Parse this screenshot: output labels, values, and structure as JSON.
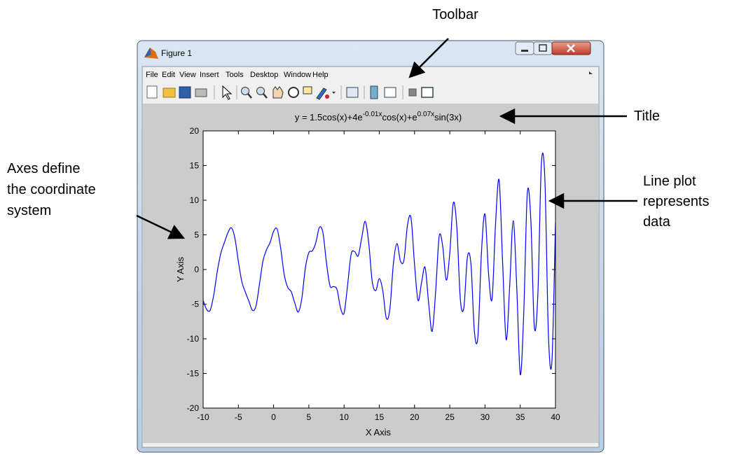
{
  "window": {
    "title": "Figure 1",
    "menu": [
      "File",
      "Edit",
      "View",
      "Insert",
      "Tools",
      "Desktop",
      "Window",
      "Help"
    ]
  },
  "annotations": {
    "toolbar": "Toolbar",
    "title": "Title",
    "line_plot": [
      "Line plot",
      "represents",
      "data"
    ],
    "axes": [
      "Axes define",
      "the coordinate",
      "system"
    ]
  },
  "chart_data": {
    "type": "line",
    "title": [
      "y = 1.5cos(x)+4e",
      "-0.01x",
      "cos(x)+e",
      "0.07x",
      "sin(3x)"
    ],
    "xlabel": "X Axis",
    "ylabel": "Y Axis",
    "color": "#0000ff",
    "xlim": [
      -10,
      40
    ],
    "ylim": [
      -20,
      20
    ],
    "xticks": [
      -10,
      -5,
      0,
      5,
      10,
      15,
      20,
      25,
      30,
      35,
      40
    ],
    "yticks": [
      -20,
      -15,
      -10,
      -5,
      0,
      5,
      10,
      15,
      20
    ],
    "x": [
      -10,
      -9.5,
      -9,
      -8.5,
      -8,
      -7.5,
      -7,
      -6.5,
      -6,
      -5.5,
      -5,
      -4.5,
      -4,
      -3.5,
      -3,
      -2.5,
      -2,
      -1.5,
      -1,
      -0.5,
      0,
      0.5,
      1,
      1.5,
      2,
      2.5,
      3,
      3.5,
      4,
      4.5,
      5,
      5.5,
      6,
      6.5,
      7,
      7.5,
      8,
      8.5,
      9,
      9.5,
      10,
      10.5,
      11,
      11.5,
      12,
      12.5,
      13,
      13.5,
      14,
      14.5,
      15,
      15.5,
      16,
      16.5,
      17,
      17.5,
      18,
      18.5,
      19,
      19.5,
      20,
      20.5,
      21,
      21.5,
      22,
      22.5,
      23,
      23.5,
      24,
      24.5,
      25,
      25.5,
      26,
      26.5,
      27,
      27.5,
      28,
      28.5,
      29,
      29.5,
      30,
      30.5,
      31,
      31.5,
      32,
      32.5,
      33,
      33.5,
      34,
      34.5,
      35,
      35.5,
      36,
      36.5,
      37,
      37.5,
      38,
      38.5,
      39,
      39.5,
      40
    ],
    "values": [
      -4.48,
      -5.77,
      -5.87,
      -3.72,
      -0.33,
      2.3,
      3.85,
      5.26,
      6.02,
      4.55,
      1.16,
      -1.79,
      -3.29,
      -4.59,
      -5.89,
      -5.28,
      -2.08,
      1.27,
      2.86,
      3.89,
      5.5,
      5.84,
      3.1,
      -0.71,
      -2.57,
      -3.21,
      -4.82,
      -6.14,
      -4.2,
      0.16,
      2.43,
      2.69,
      3.91,
      6.08,
      5.31,
      0.98,
      -2.35,
      -2.46,
      -2.9,
      -5.56,
      -6.29,
      -2.25,
      2.18,
      2.58,
      1.96,
      4.55,
      6.94,
      3.83,
      -1.76,
      -3.04,
      -1.32,
      -3.1,
      -7.05,
      -5.68,
      0.86,
      3.75,
      1.22,
      1.38,
      6.41,
      7.44,
      0.71,
      -4.46,
      -1.87,
      0.31,
      -4.84,
      -8.93,
      -3.07,
      4.8,
      3.33,
      -1.53,
      2.34,
      9.61,
      6.13,
      -4.31,
      -5.5,
      1.75,
      0.85,
      -9.01,
      -9.61,
      2.52,
      7.99,
      -0.54,
      -4.25,
      6.66,
      12.91,
      0.98,
      -10.12,
      -2.46,
      7.06,
      -2.41,
      -15.15,
      -6.23,
      10.97,
      7.21,
      -8.26,
      -3.59,
      15.27,
      12.9,
      -9.46,
      -13.2,
      6.75
    ]
  }
}
